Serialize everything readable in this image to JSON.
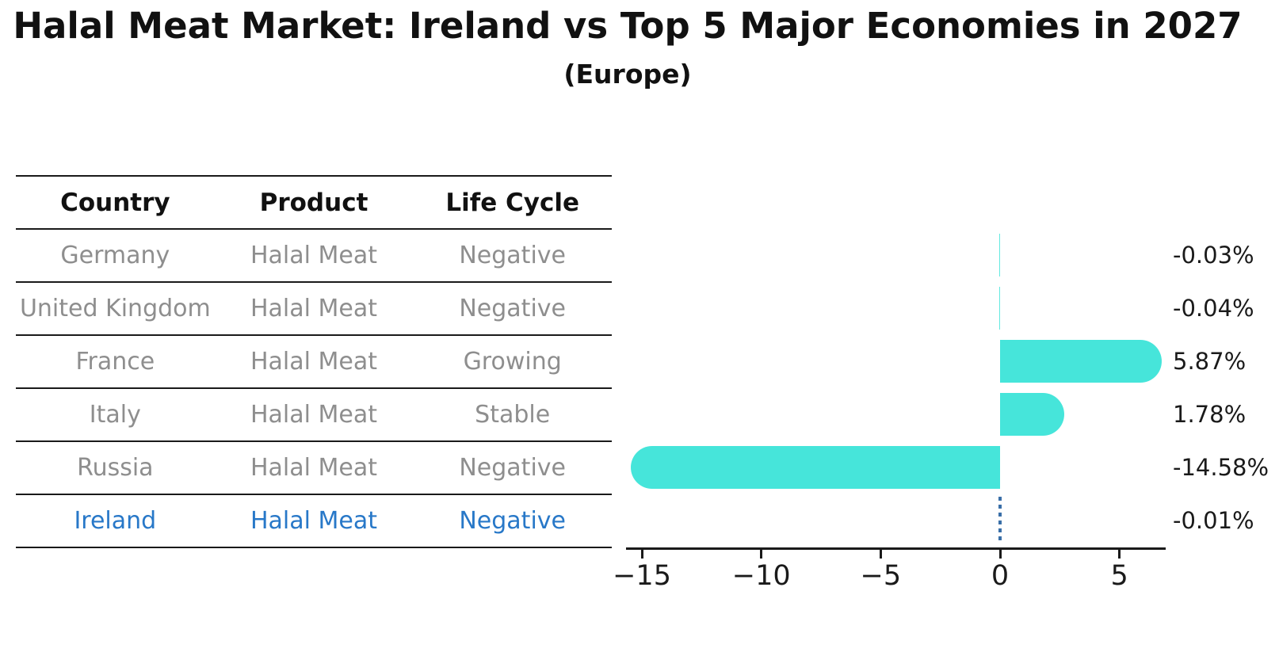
{
  "title": "Halal Meat Market: Ireland vs Top 5 Major Economies in 2027",
  "subtitle": "(Europe)",
  "table": {
    "headers": [
      "Country",
      "Product",
      "Life Cycle"
    ],
    "rows": [
      {
        "country": "Germany",
        "product": "Halal Meat",
        "life_cycle": "Negative"
      },
      {
        "country": "United Kingdom",
        "product": "Halal Meat",
        "life_cycle": "Negative"
      },
      {
        "country": "France",
        "product": "Halal Meat",
        "life_cycle": "Growing"
      },
      {
        "country": "Italy",
        "product": "Halal Meat",
        "life_cycle": "Stable"
      },
      {
        "country": "Russia",
        "product": "Halal Meat",
        "life_cycle": "Negative"
      },
      {
        "country": "Ireland",
        "product": "Halal Meat",
        "life_cycle": "Negative"
      }
    ]
  },
  "chart_data": {
    "type": "bar",
    "orientation": "horizontal",
    "categories": [
      "Germany",
      "United Kingdom",
      "France",
      "Italy",
      "Russia",
      "Ireland"
    ],
    "values": [
      -0.03,
      -0.04,
      5.87,
      1.78,
      -14.58,
      -0.01
    ],
    "value_labels": [
      "-0.03%",
      "-0.04%",
      "5.87%",
      "1.78%",
      "-14.58%",
      "-0.01%"
    ],
    "xticks": [
      -15,
      -10,
      -5,
      0,
      5
    ],
    "xtick_labels": [
      "−15",
      "−10",
      "−5",
      "0",
      "5"
    ],
    "xlim": [
      -15.7,
      6.9
    ],
    "grid": false,
    "legend": "none",
    "highlight_category": "Ireland",
    "highlight_marker": "dotted-zero-line"
  },
  "colors": {
    "bar": "#46E5DA",
    "highlight_text": "#2878C8",
    "highlight_line": "#3A6FA8",
    "muted_text": "#8E8E8E",
    "axis": "#1a1a1a"
  }
}
